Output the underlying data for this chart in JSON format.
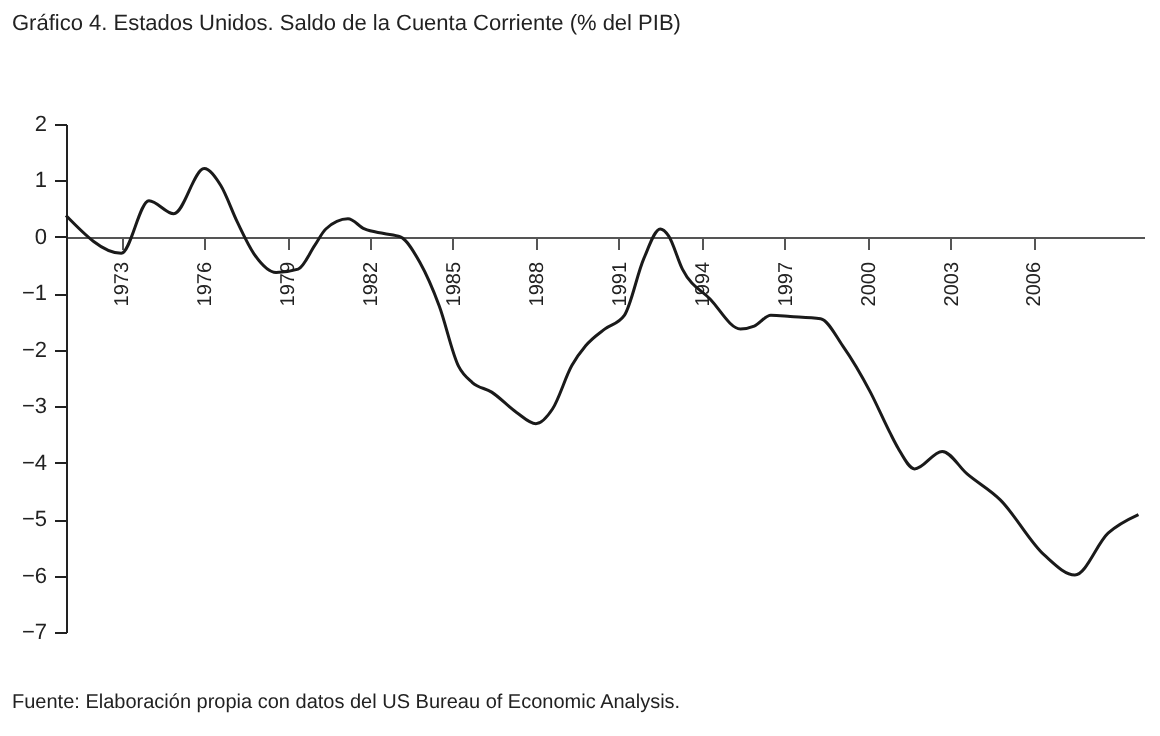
{
  "chart_data": {
    "type": "line",
    "title": "Gráfico 4. Estados Unidos. Saldo de la Cuenta Corriente (% del PIB)",
    "annotations": [
      "Fuente: Elaboración propia con datos del US Bureau of Economic Analysis."
    ],
    "x": [
      1971.0,
      1973.0,
      1974.0,
      1974.9,
      1976.0,
      1976.6,
      1977.2,
      1977.8,
      1978.6,
      1979.4,
      1980.0,
      1980.4,
      1981.2,
      1981.8,
      1982.5,
      1983.1,
      1983.8,
      1984.5,
      1985.2,
      1985.7,
      1986.4,
      1987.3,
      1988.0,
      1988.6,
      1989.3,
      1989.8,
      1990.5,
      1991.2,
      1991.9,
      1992.5,
      1992.8,
      1993.3,
      1994.3,
      1995.4,
      1995.9,
      1996.5,
      1997.2,
      1998.3,
      1999.1,
      2000.1,
      2000.8,
      2001.1,
      2001.7,
      2002.7,
      2003.6,
      2004.8,
      2006.4,
      2007.5,
      2008.7,
      2009.8
    ],
    "values": [
      0.38,
      -0.29,
      0.64,
      0.41,
      1.21,
      0.91,
      0.26,
      -0.3,
      -0.63,
      -0.57,
      -0.15,
      0.14,
      0.32,
      0.14,
      0.06,
      0.0,
      -0.45,
      -1.22,
      -2.29,
      -2.58,
      -2.75,
      -3.11,
      -3.31,
      -3.05,
      -2.28,
      -1.93,
      -1.63,
      -1.39,
      -0.39,
      0.14,
      0.02,
      -0.57,
      -1.1,
      -1.63,
      -1.58,
      -1.39,
      -1.41,
      -1.45,
      -1.93,
      -2.75,
      -3.46,
      -3.74,
      -4.11,
      -3.8,
      -4.2,
      -4.66,
      -5.64,
      -5.99,
      -5.25,
      -4.92
    ],
    "color": "#1a1a1a",
    "xlim": [
      1971,
      2010
    ],
    "xticks": [
      1973,
      1976,
      1979,
      1982,
      1985,
      1988,
      1991,
      1994,
      1997,
      2000,
      2003,
      2006
    ],
    "ylim": [
      -7,
      2
    ],
    "yticks": [
      2,
      1,
      0,
      -1,
      -2,
      -3,
      -4,
      -5,
      -6,
      -7
    ]
  }
}
